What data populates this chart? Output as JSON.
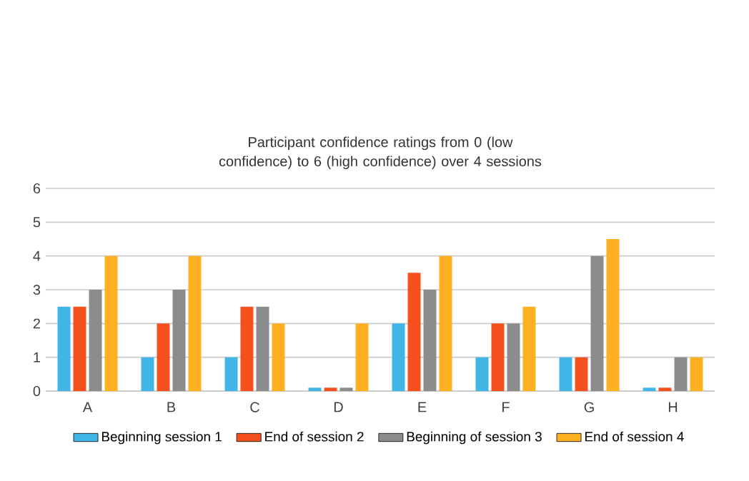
{
  "chart_data": {
    "type": "bar",
    "title": "Participant confidence ratings from 0 (low confidence) to 6 (high confidence) over 4 sessions",
    "categories": [
      "A",
      "B",
      "C",
      "D",
      "E",
      "F",
      "G",
      "H"
    ],
    "series": [
      {
        "name": "Beginning session 1",
        "color": "#41b6e6",
        "values": [
          2.5,
          1,
          1,
          0.1,
          2,
          1,
          1,
          0.1
        ]
      },
      {
        "name": "End of session 2",
        "color": "#f4511e",
        "values": [
          2.5,
          2,
          2.5,
          0.1,
          3.5,
          2,
          1,
          0.1
        ]
      },
      {
        "name": "Beginning of session 3",
        "color": "#8c8c8c",
        "values": [
          3,
          3,
          2.5,
          0.1,
          3,
          2,
          4,
          1
        ]
      },
      {
        "name": "End of session 4",
        "color": "#ffb020",
        "values": [
          4,
          4,
          2,
          2,
          4,
          2.5,
          4.5,
          1
        ]
      }
    ],
    "ylim": [
      0,
      6
    ],
    "yticks": [
      0,
      1,
      2,
      3,
      4,
      5,
      6
    ],
    "grid": "y",
    "legend": "bottom"
  }
}
